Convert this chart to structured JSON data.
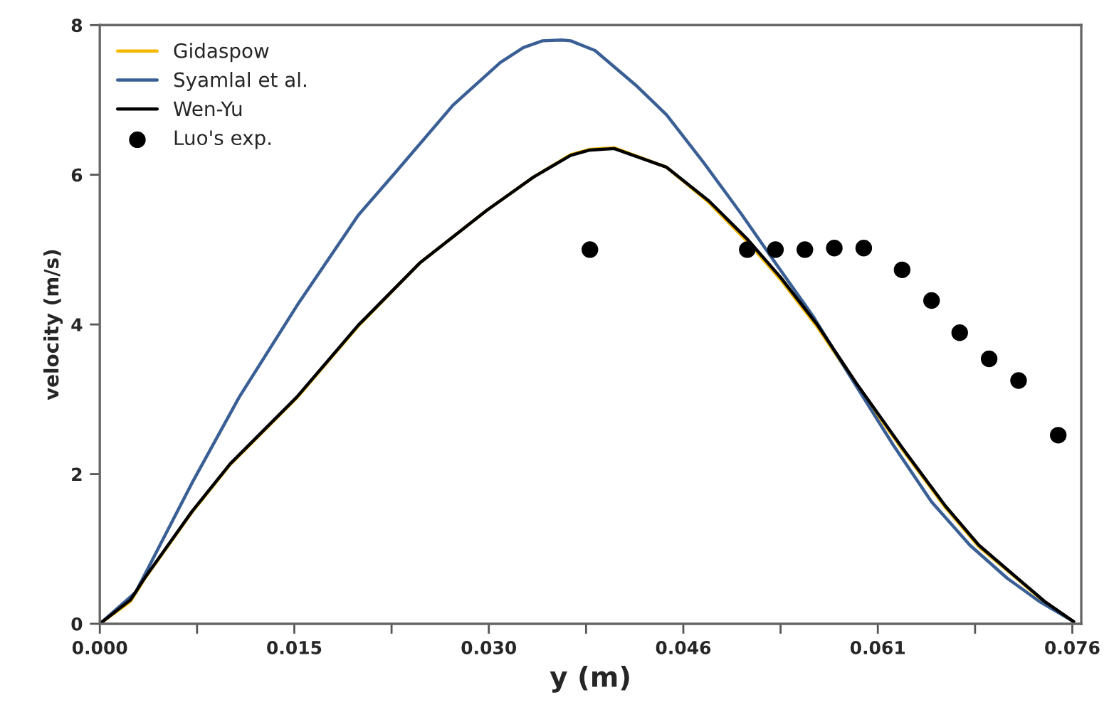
{
  "chart_data": {
    "type": "line",
    "xlabel": "y (m)",
    "ylabel": "velocity (m/s)",
    "xlim": [
      0,
      0.0767
    ],
    "ylim": [
      0,
      8
    ],
    "xticks": [
      {
        "value": 0,
        "label": "0.000"
      },
      {
        "value": 0.0076,
        "label": null
      },
      {
        "value": 0.0152,
        "label": "0.015"
      },
      {
        "value": 0.0228,
        "label": null
      },
      {
        "value": 0.0304,
        "label": "0.030"
      },
      {
        "value": 0.038,
        "label": null
      },
      {
        "value": 0.0456,
        "label": "0.046"
      },
      {
        "value": 0.0532,
        "label": null
      },
      {
        "value": 0.0608,
        "label": "0.061"
      },
      {
        "value": 0.0684,
        "label": null
      },
      {
        "value": 0.076,
        "label": "0.076"
      }
    ],
    "yticks": [
      0,
      2,
      4,
      6,
      8
    ],
    "grid": false,
    "legend": "top left",
    "line_style": "solid",
    "marker": "none",
    "series": [
      {
        "name": "Gidaspow",
        "color": "#f5b800",
        "x": [
          0,
          0.0024,
          0.0035,
          0.0072,
          0.0102,
          0.0154,
          0.0202,
          0.025,
          0.0302,
          0.0339,
          0.0368,
          0.0383,
          0.0402,
          0.0443,
          0.0476,
          0.0506,
          0.0532,
          0.0561,
          0.0591,
          0.0628,
          0.0661,
          0.0687,
          0.0717,
          0.0739,
          0.0761
        ],
        "values": [
          0,
          0.3,
          0.6,
          1.49,
          2.13,
          3.02,
          3.98,
          4.82,
          5.52,
          5.97,
          6.27,
          6.34,
          6.36,
          6.1,
          5.63,
          5.11,
          4.6,
          3.96,
          3.2,
          2.31,
          1.55,
          1.03,
          0.6,
          0.28,
          0.03
        ]
      },
      {
        "name": "Syamlal et al.",
        "color": "#3a5f95",
        "x": [
          0,
          0.0028,
          0.0072,
          0.0109,
          0.0154,
          0.0202,
          0.0231,
          0.0276,
          0.0313,
          0.0331,
          0.0346,
          0.0361,
          0.0368,
          0.0387,
          0.042,
          0.0443,
          0.0472,
          0.0502,
          0.0528,
          0.0557,
          0.0587,
          0.062,
          0.065,
          0.068,
          0.0709,
          0.0735,
          0.0761
        ],
        "values": [
          0,
          0.42,
          1.88,
          3.03,
          4.25,
          5.46,
          6.03,
          6.93,
          7.5,
          7.7,
          7.79,
          7.8,
          7.79,
          7.66,
          7.18,
          6.8,
          6.16,
          5.46,
          4.82,
          4.12,
          3.29,
          2.39,
          1.63,
          1.05,
          0.61,
          0.29,
          0.03
        ]
      },
      {
        "name": "Wen-Yu",
        "color": "#000000",
        "x": [
          0,
          0.0024,
          0.0035,
          0.0072,
          0.0102,
          0.0154,
          0.0202,
          0.025,
          0.0302,
          0.0339,
          0.0368,
          0.0383,
          0.0402,
          0.0443,
          0.0476,
          0.0506,
          0.0532,
          0.0561,
          0.0591,
          0.0628,
          0.0661,
          0.0687,
          0.0717,
          0.0739,
          0.0761
        ],
        "values": [
          0,
          0.32,
          0.61,
          1.5,
          2.14,
          3.03,
          3.99,
          4.82,
          5.52,
          5.97,
          6.26,
          6.33,
          6.35,
          6.1,
          5.65,
          5.14,
          4.63,
          3.99,
          3.22,
          2.33,
          1.57,
          1.05,
          0.61,
          0.29,
          0.03
        ]
      },
      {
        "name": "Luo's exp.",
        "type": "scatter",
        "marker": "circle",
        "color": "#000000",
        "x": [
          0.0383,
          0.0506,
          0.0528,
          0.0551,
          0.0574,
          0.0597,
          0.0627,
          0.065,
          0.0672,
          0.0695,
          0.0718,
          0.0749
        ],
        "values": [
          5.0,
          5.0,
          5.0,
          5.0,
          5.02,
          5.02,
          4.73,
          4.32,
          3.89,
          3.54,
          3.25,
          2.52
        ]
      }
    ]
  }
}
